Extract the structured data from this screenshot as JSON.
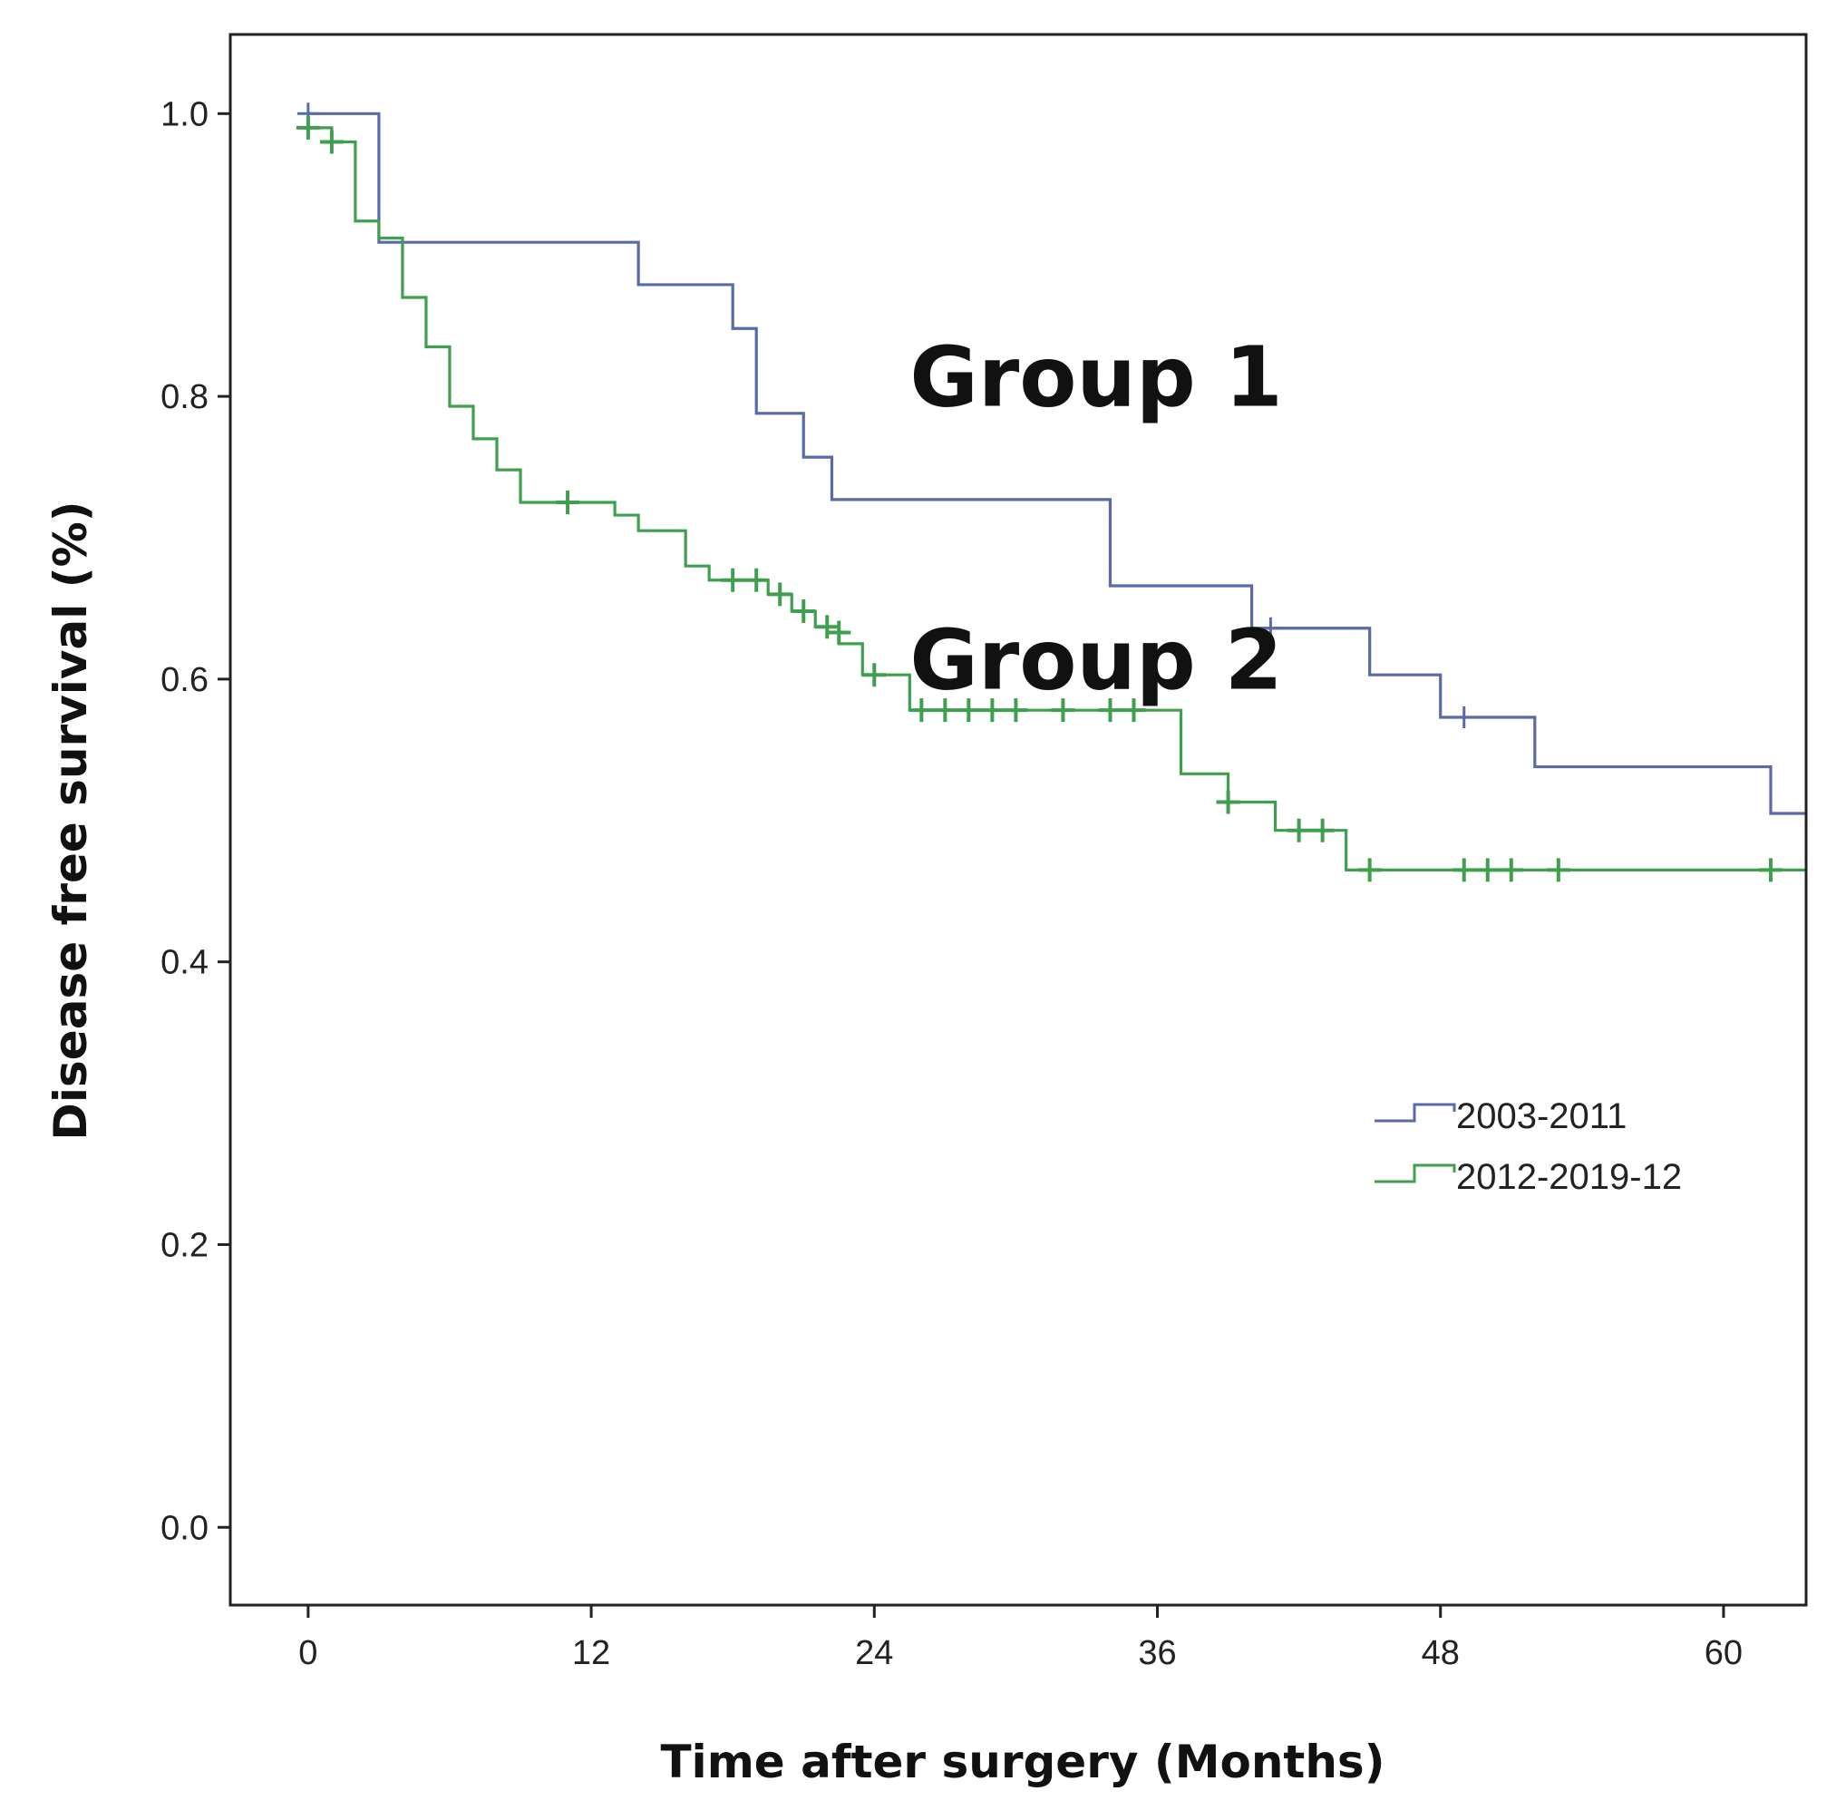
{
  "chart_data": {
    "type": "line",
    "subtype": "kaplan-meier-step",
    "title": "",
    "xlabel": "Time after surgery (Months)",
    "ylabel": "Disease free survival (%)",
    "xlim": [
      -3.3,
      63.5
    ],
    "ylim": [
      -0.055,
      1.056
    ],
    "xticks": [
      0,
      12,
      24,
      36,
      48,
      60
    ],
    "yticks": [
      0.0,
      0.2,
      0.4,
      0.6,
      0.8,
      1.0
    ],
    "ytick_labels": [
      "0.0",
      "0.2",
      "0.4",
      "0.6",
      "0.8",
      "1.0"
    ],
    "grid": false,
    "legend_position": "right, mid-height",
    "annotations": [
      {
        "text": "Group 1",
        "x": 25.5,
        "y": 0.815
      },
      {
        "text": "Group 2",
        "x": 25.5,
        "y": 0.615
      }
    ],
    "series": [
      {
        "name": "2003-2011",
        "color": "#5a6aa8",
        "steps": [
          [
            0,
            1.0
          ],
          [
            3.0,
            0.909
          ],
          [
            14.0,
            0.879
          ],
          [
            18.0,
            0.848
          ],
          [
            19.0,
            0.788
          ],
          [
            21.0,
            0.757
          ],
          [
            22.2,
            0.727
          ],
          [
            34.0,
            0.666
          ],
          [
            40.0,
            0.636
          ],
          [
            45.0,
            0.603
          ],
          [
            48.0,
            0.573
          ],
          [
            52.0,
            0.538
          ],
          [
            62.0,
            0.505
          ],
          [
            63.5,
            0.505
          ]
        ],
        "censored": [
          [
            0.0,
            1.0
          ],
          [
            40.8,
            0.636
          ],
          [
            49.0,
            0.573
          ]
        ]
      },
      {
        "name": "2012-2019-12",
        "color": "#3f9f4f",
        "steps": [
          [
            0,
            0.99
          ],
          [
            1.0,
            0.98
          ],
          [
            2.0,
            0.924
          ],
          [
            3.0,
            0.912
          ],
          [
            4.0,
            0.87
          ],
          [
            5.0,
            0.835
          ],
          [
            6.0,
            0.793
          ],
          [
            7.0,
            0.77
          ],
          [
            8.0,
            0.748
          ],
          [
            9.0,
            0.725
          ],
          [
            13.0,
            0.716
          ],
          [
            14.0,
            0.705
          ],
          [
            16.0,
            0.68
          ],
          [
            17.0,
            0.67
          ],
          [
            19.5,
            0.66
          ],
          [
            20.5,
            0.648
          ],
          [
            21.5,
            0.637
          ],
          [
            22.5,
            0.625
          ],
          [
            23.5,
            0.603
          ],
          [
            25.5,
            0.578
          ],
          [
            37.0,
            0.533
          ],
          [
            39.0,
            0.513
          ],
          [
            41.0,
            0.493
          ],
          [
            44.0,
            0.465
          ],
          [
            63.5,
            0.465
          ]
        ],
        "censored": [
          [
            0,
            0.99
          ],
          [
            1.0,
            0.98
          ],
          [
            11.0,
            0.725
          ],
          [
            18.0,
            0.67
          ],
          [
            19.0,
            0.67
          ],
          [
            20.0,
            0.66
          ],
          [
            21.0,
            0.648
          ],
          [
            22.0,
            0.637
          ],
          [
            22.5,
            0.633
          ],
          [
            24.0,
            0.603
          ],
          [
            26.0,
            0.578
          ],
          [
            27.0,
            0.578
          ],
          [
            28.0,
            0.578
          ],
          [
            29.0,
            0.578
          ],
          [
            30.0,
            0.578
          ],
          [
            32.0,
            0.578
          ],
          [
            34.0,
            0.578
          ],
          [
            35.0,
            0.578
          ],
          [
            39.0,
            0.513
          ],
          [
            42.0,
            0.493
          ],
          [
            43.0,
            0.493
          ],
          [
            45.0,
            0.465
          ],
          [
            49.0,
            0.465
          ],
          [
            50.0,
            0.465
          ],
          [
            51.0,
            0.465
          ],
          [
            53.0,
            0.465
          ],
          [
            62.0,
            0.465
          ]
        ]
      }
    ]
  }
}
